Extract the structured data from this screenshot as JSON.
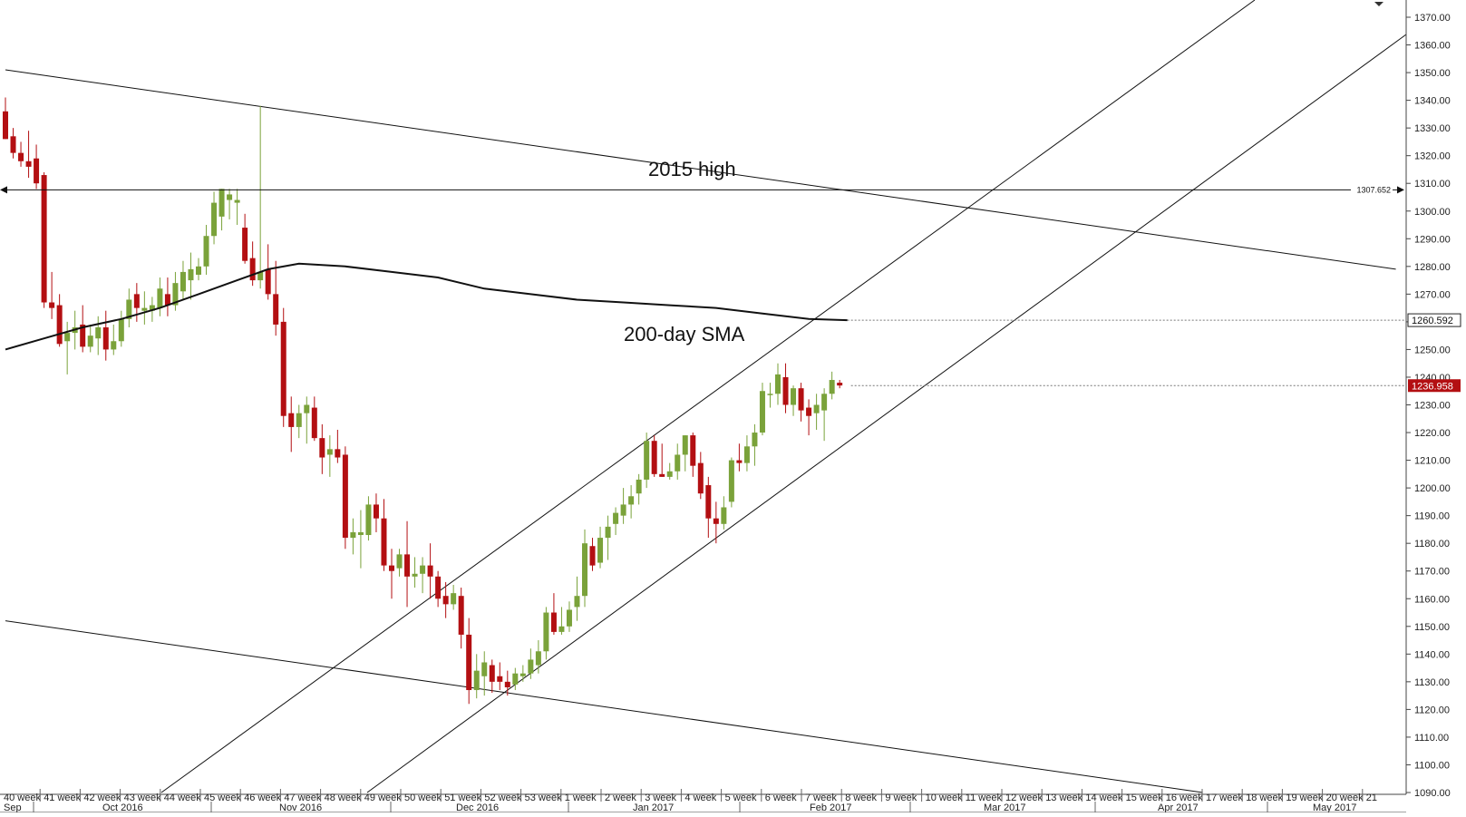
{
  "chart_data": {
    "type": "candlestick",
    "y_axis": {
      "min": 1090,
      "max": 1370,
      "step": 10,
      "tick_labels": [
        "1090.00",
        "1100.00",
        "1110.00",
        "1120.00",
        "1130.00",
        "1140.00",
        "1150.00",
        "1160.00",
        "1170.00",
        "1180.00",
        "1190.00",
        "1200.00",
        "1210.00",
        "1220.00",
        "1230.00",
        "1240.00",
        "1250.00",
        "1260.00",
        "1270.00",
        "1280.00",
        "1290.00",
        "1300.00",
        "1310.00",
        "1320.00",
        "1330.00",
        "1340.00",
        "1350.00",
        "1360.00",
        "1370.00"
      ]
    },
    "x_axis": {
      "week_labels": [
        "40 week",
        "41 week",
        "42 week",
        "43 week",
        "44 week",
        "45 week",
        "46 week",
        "47 week",
        "48 week",
        "49 week",
        "50 week",
        "51 week",
        "52 week",
        "53 week",
        "1 week",
        "2 week",
        "3 week",
        "4 week",
        "5 week",
        "6 week",
        "7 week",
        "8 week",
        "9 week",
        "10 week",
        "11 week",
        "12 week",
        "13 week",
        "14 week",
        "15 week",
        "16 week",
        "17 week",
        "18 week",
        "19 week",
        "20 week",
        "21"
      ],
      "month_labels": [
        "Sep",
        "Oct 2016",
        "Nov 2016",
        "Dec 2016",
        "Jan 2017",
        "Feb 2017",
        "Mar 2017",
        "Apr 2017",
        "May 2017"
      ]
    },
    "annotations": {
      "resistance_label": "2015 high",
      "resistance_value": "1307.652",
      "sma_label": "200-day SMA",
      "sma_value": "1260.592",
      "last_price": "1236.958"
    },
    "colors": {
      "up": "#7aa23a",
      "down": "#b30f12",
      "line": "#111111",
      "last_price_bg": "#b30f12",
      "sma_tag_border": "#222222"
    },
    "candles": [
      {
        "o": 1336,
        "h": 1341,
        "l": 1326,
        "c": 1326
      },
      {
        "o": 1327,
        "h": 1330,
        "l": 1319,
        "c": 1321
      },
      {
        "o": 1321,
        "h": 1325,
        "l": 1316,
        "c": 1318
      },
      {
        "o": 1318,
        "h": 1329,
        "l": 1312,
        "c": 1316
      },
      {
        "o": 1319,
        "h": 1324,
        "l": 1308,
        "c": 1310
      },
      {
        "o": 1313,
        "h": 1314,
        "l": 1265,
        "c": 1267
      },
      {
        "o": 1267,
        "h": 1278,
        "l": 1261,
        "c": 1265
      },
      {
        "o": 1266,
        "h": 1270,
        "l": 1251,
        "c": 1252
      },
      {
        "o": 1253,
        "h": 1260,
        "l": 1241,
        "c": 1256
      },
      {
        "o": 1256,
        "h": 1264,
        "l": 1250,
        "c": 1258
      },
      {
        "o": 1259,
        "h": 1266,
        "l": 1249,
        "c": 1251
      },
      {
        "o": 1251,
        "h": 1259,
        "l": 1249,
        "c": 1255
      },
      {
        "o": 1254,
        "h": 1262,
        "l": 1248,
        "c": 1258
      },
      {
        "o": 1258,
        "h": 1264,
        "l": 1246,
        "c": 1250
      },
      {
        "o": 1250,
        "h": 1259,
        "l": 1248,
        "c": 1253
      },
      {
        "o": 1253,
        "h": 1264,
        "l": 1251,
        "c": 1261
      },
      {
        "o": 1261,
        "h": 1272,
        "l": 1258,
        "c": 1268
      },
      {
        "o": 1270,
        "h": 1274,
        "l": 1260,
        "c": 1265
      },
      {
        "o": 1264,
        "h": 1271,
        "l": 1259,
        "c": 1265
      },
      {
        "o": 1264,
        "h": 1269,
        "l": 1260,
        "c": 1266
      },
      {
        "o": 1265,
        "h": 1276,
        "l": 1262,
        "c": 1272
      },
      {
        "o": 1270,
        "h": 1276,
        "l": 1262,
        "c": 1266
      },
      {
        "o": 1266,
        "h": 1278,
        "l": 1264,
        "c": 1274
      },
      {
        "o": 1271,
        "h": 1282,
        "l": 1268,
        "c": 1278
      },
      {
        "o": 1275,
        "h": 1285,
        "l": 1268,
        "c": 1279
      },
      {
        "o": 1277,
        "h": 1283,
        "l": 1275,
        "c": 1280
      },
      {
        "o": 1280,
        "h": 1295,
        "l": 1277,
        "c": 1291
      },
      {
        "o": 1291,
        "h": 1307,
        "l": 1288,
        "c": 1303
      },
      {
        "o": 1298,
        "h": 1308,
        "l": 1293,
        "c": 1308
      },
      {
        "o": 1304,
        "h": 1308,
        "l": 1297,
        "c": 1306
      },
      {
        "o": 1303,
        "h": 1308,
        "l": 1295,
        "c": 1304
      },
      {
        "o": 1294,
        "h": 1299,
        "l": 1281,
        "c": 1282
      },
      {
        "o": 1283,
        "h": 1289,
        "l": 1273,
        "c": 1275
      },
      {
        "o": 1275,
        "h": 1338,
        "l": 1272,
        "c": 1278
      },
      {
        "o": 1279,
        "h": 1288,
        "l": 1268,
        "c": 1270
      },
      {
        "o": 1270,
        "h": 1282,
        "l": 1255,
        "c": 1259
      },
      {
        "o": 1260,
        "h": 1265,
        "l": 1222,
        "c": 1226
      },
      {
        "o": 1227,
        "h": 1233,
        "l": 1213,
        "c": 1222
      },
      {
        "o": 1222,
        "h": 1230,
        "l": 1218,
        "c": 1227
      },
      {
        "o": 1227,
        "h": 1233,
        "l": 1216,
        "c": 1230
      },
      {
        "o": 1229,
        "h": 1233,
        "l": 1217,
        "c": 1218
      },
      {
        "o": 1218,
        "h": 1223,
        "l": 1205,
        "c": 1211
      },
      {
        "o": 1212,
        "h": 1219,
        "l": 1204,
        "c": 1214
      },
      {
        "o": 1214,
        "h": 1221,
        "l": 1209,
        "c": 1211
      },
      {
        "o": 1212,
        "h": 1215,
        "l": 1178,
        "c": 1182
      },
      {
        "o": 1182,
        "h": 1189,
        "l": 1176,
        "c": 1184
      },
      {
        "o": 1183,
        "h": 1192,
        "l": 1171,
        "c": 1184
      },
      {
        "o": 1183,
        "h": 1197,
        "l": 1181,
        "c": 1194
      },
      {
        "o": 1194,
        "h": 1198,
        "l": 1184,
        "c": 1189
      },
      {
        "o": 1189,
        "h": 1196,
        "l": 1170,
        "c": 1172
      },
      {
        "o": 1172,
        "h": 1178,
        "l": 1160,
        "c": 1170
      },
      {
        "o": 1171,
        "h": 1178,
        "l": 1168,
        "c": 1176
      },
      {
        "o": 1176,
        "h": 1188,
        "l": 1157,
        "c": 1168
      },
      {
        "o": 1168,
        "h": 1175,
        "l": 1164,
        "c": 1169
      },
      {
        "o": 1169,
        "h": 1175,
        "l": 1162,
        "c": 1172
      },
      {
        "o": 1172,
        "h": 1180,
        "l": 1160,
        "c": 1168
      },
      {
        "o": 1168,
        "h": 1170,
        "l": 1157,
        "c": 1160
      },
      {
        "o": 1161,
        "h": 1166,
        "l": 1153,
        "c": 1158
      },
      {
        "o": 1158,
        "h": 1165,
        "l": 1156,
        "c": 1162
      },
      {
        "o": 1161,
        "h": 1164,
        "l": 1142,
        "c": 1147
      },
      {
        "o": 1147,
        "h": 1153,
        "l": 1122,
        "c": 1127
      },
      {
        "o": 1127,
        "h": 1140,
        "l": 1124,
        "c": 1134
      },
      {
        "o": 1132,
        "h": 1141,
        "l": 1125,
        "c": 1137
      },
      {
        "o": 1136,
        "h": 1138,
        "l": 1126,
        "c": 1130
      },
      {
        "o": 1132,
        "h": 1137,
        "l": 1127,
        "c": 1130
      },
      {
        "o": 1130,
        "h": 1134,
        "l": 1125,
        "c": 1128
      },
      {
        "o": 1129,
        "h": 1135,
        "l": 1127,
        "c": 1133
      },
      {
        "o": 1132,
        "h": 1136,
        "l": 1130,
        "c": 1133
      },
      {
        "o": 1133,
        "h": 1142,
        "l": 1131,
        "c": 1138
      },
      {
        "o": 1136,
        "h": 1145,
        "l": 1133,
        "c": 1141
      },
      {
        "o": 1141,
        "h": 1157,
        "l": 1138,
        "c": 1155
      },
      {
        "o": 1155,
        "h": 1162,
        "l": 1147,
        "c": 1148
      },
      {
        "o": 1148,
        "h": 1157,
        "l": 1147,
        "c": 1150
      },
      {
        "o": 1150,
        "h": 1159,
        "l": 1148,
        "c": 1156
      },
      {
        "o": 1157,
        "h": 1168,
        "l": 1152,
        "c": 1161
      },
      {
        "o": 1161,
        "h": 1185,
        "l": 1157,
        "c": 1180
      },
      {
        "o": 1179,
        "h": 1182,
        "l": 1170,
        "c": 1172
      },
      {
        "o": 1173,
        "h": 1186,
        "l": 1171,
        "c": 1182
      },
      {
        "o": 1182,
        "h": 1190,
        "l": 1174,
        "c": 1186
      },
      {
        "o": 1187,
        "h": 1193,
        "l": 1183,
        "c": 1191
      },
      {
        "o": 1190,
        "h": 1200,
        "l": 1187,
        "c": 1194
      },
      {
        "o": 1194,
        "h": 1201,
        "l": 1189,
        "c": 1197
      },
      {
        "o": 1198,
        "h": 1205,
        "l": 1194,
        "c": 1203
      },
      {
        "o": 1203,
        "h": 1220,
        "l": 1200,
        "c": 1217
      },
      {
        "o": 1217,
        "h": 1219,
        "l": 1204,
        "c": 1205
      },
      {
        "o": 1205,
        "h": 1216,
        "l": 1204,
        "c": 1204
      },
      {
        "o": 1204,
        "h": 1209,
        "l": 1203,
        "c": 1206
      },
      {
        "o": 1206,
        "h": 1216,
        "l": 1203,
        "c": 1212
      },
      {
        "o": 1212,
        "h": 1219,
        "l": 1206,
        "c": 1219
      },
      {
        "o": 1219,
        "h": 1220,
        "l": 1204,
        "c": 1208
      },
      {
        "o": 1209,
        "h": 1213,
        "l": 1196,
        "c": 1198
      },
      {
        "o": 1201,
        "h": 1204,
        "l": 1182,
        "c": 1189
      },
      {
        "o": 1189,
        "h": 1195,
        "l": 1180,
        "c": 1187
      },
      {
        "o": 1187,
        "h": 1197,
        "l": 1185,
        "c": 1193
      },
      {
        "o": 1195,
        "h": 1211,
        "l": 1193,
        "c": 1210
      },
      {
        "o": 1210,
        "h": 1216,
        "l": 1206,
        "c": 1209
      },
      {
        "o": 1209,
        "h": 1219,
        "l": 1206,
        "c": 1215
      },
      {
        "o": 1215,
        "h": 1223,
        "l": 1208,
        "c": 1220
      },
      {
        "o": 1220,
        "h": 1238,
        "l": 1219,
        "c": 1235
      },
      {
        "o": 1234,
        "h": 1238,
        "l": 1229,
        "c": 1234
      },
      {
        "o": 1234,
        "h": 1245,
        "l": 1230,
        "c": 1241
      },
      {
        "o": 1240,
        "h": 1245,
        "l": 1227,
        "c": 1230
      },
      {
        "o": 1230,
        "h": 1237,
        "l": 1226,
        "c": 1236
      },
      {
        "o": 1236,
        "h": 1238,
        "l": 1224,
        "c": 1228
      },
      {
        "o": 1229,
        "h": 1232,
        "l": 1219,
        "c": 1226
      },
      {
        "o": 1227,
        "h": 1234,
        "l": 1221,
        "c": 1230
      },
      {
        "o": 1228,
        "h": 1236,
        "l": 1217,
        "c": 1234
      },
      {
        "o": 1234,
        "h": 1242,
        "l": 1232,
        "c": 1239
      },
      {
        "o": 1238,
        "h": 1239,
        "l": 1236,
        "c": 1237
      }
    ],
    "sma": [
      {
        "i": 0,
        "v": 1250
      },
      {
        "i": 5,
        "v": 1254
      },
      {
        "i": 10,
        "v": 1258
      },
      {
        "i": 15,
        "v": 1261
      },
      {
        "i": 20,
        "v": 1265
      },
      {
        "i": 25,
        "v": 1270
      },
      {
        "i": 30,
        "v": 1275
      },
      {
        "i": 34,
        "v": 1279
      },
      {
        "i": 38,
        "v": 1281
      },
      {
        "i": 44,
        "v": 1280
      },
      {
        "i": 50,
        "v": 1278
      },
      {
        "i": 56,
        "v": 1276
      },
      {
        "i": 62,
        "v": 1272
      },
      {
        "i": 68,
        "v": 1270
      },
      {
        "i": 74,
        "v": 1268
      },
      {
        "i": 80,
        "v": 1267
      },
      {
        "i": 86,
        "v": 1266
      },
      {
        "i": 92,
        "v": 1265
      },
      {
        "i": 98,
        "v": 1263
      },
      {
        "i": 104,
        "v": 1261
      },
      {
        "i": 109,
        "v": 1260.6
      }
    ],
    "trendlines": [
      {
        "name": "upper-descending",
        "points": [
          [
            0,
            1351
          ],
          [
            180,
            1279
          ]
        ]
      },
      {
        "name": "lower-descending",
        "points": [
          [
            0,
            1152
          ],
          [
            155,
            1090
          ]
        ]
      }
    ]
  }
}
